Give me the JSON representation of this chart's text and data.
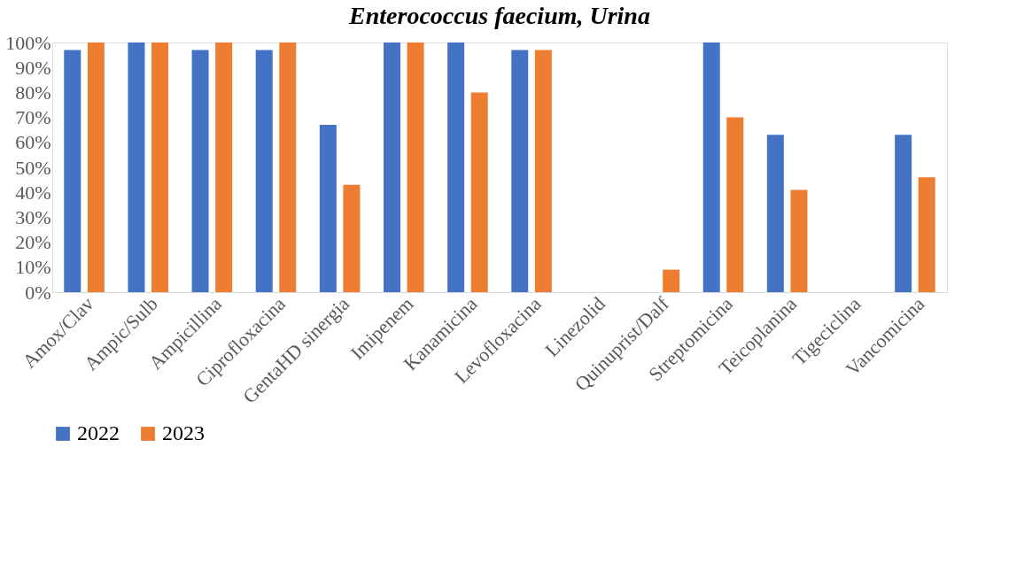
{
  "chart_data": {
    "type": "bar",
    "title": "Enterococcus faecium, Urina",
    "categories": [
      "Amox/Clav",
      "Ampic/Sulb",
      "Ampicillina",
      "Ciprofloxacina",
      "GentaHD sinergia",
      "Imipenem",
      "Kanamicina",
      "Levofloxacina",
      "Linezolid",
      "Quinuprist/Dalf",
      "Streptomicina",
      "Teicoplanina",
      "Tigeciclina",
      "Vancomicina"
    ],
    "series": [
      {
        "name": "2022",
        "color": "#4472c4",
        "values": [
          97,
          100,
          97,
          97,
          67,
          100,
          100,
          97,
          0,
          0,
          100,
          63,
          0,
          63
        ]
      },
      {
        "name": "2023",
        "color": "#ed7d31",
        "values": [
          100,
          100,
          100,
          100,
          43,
          100,
          80,
          97,
          0,
          9,
          70,
          41,
          0,
          46
        ]
      }
    ],
    "ylim": [
      0,
      100
    ],
    "yticks": [
      {
        "value": 0,
        "label": "0%"
      },
      {
        "value": 10,
        "label": "10%"
      },
      {
        "value": 20,
        "label": "20%"
      },
      {
        "value": 30,
        "label": "30%"
      },
      {
        "value": 40,
        "label": "40%"
      },
      {
        "value": 50,
        "label": "50%"
      },
      {
        "value": 60,
        "label": "60%"
      },
      {
        "value": 70,
        "label": "70%"
      },
      {
        "value": 80,
        "label": "80%"
      },
      {
        "value": 90,
        "label": "90%"
      },
      {
        "value": 100,
        "label": "100%"
      }
    ],
    "grid": false,
    "legend": "bottom"
  }
}
